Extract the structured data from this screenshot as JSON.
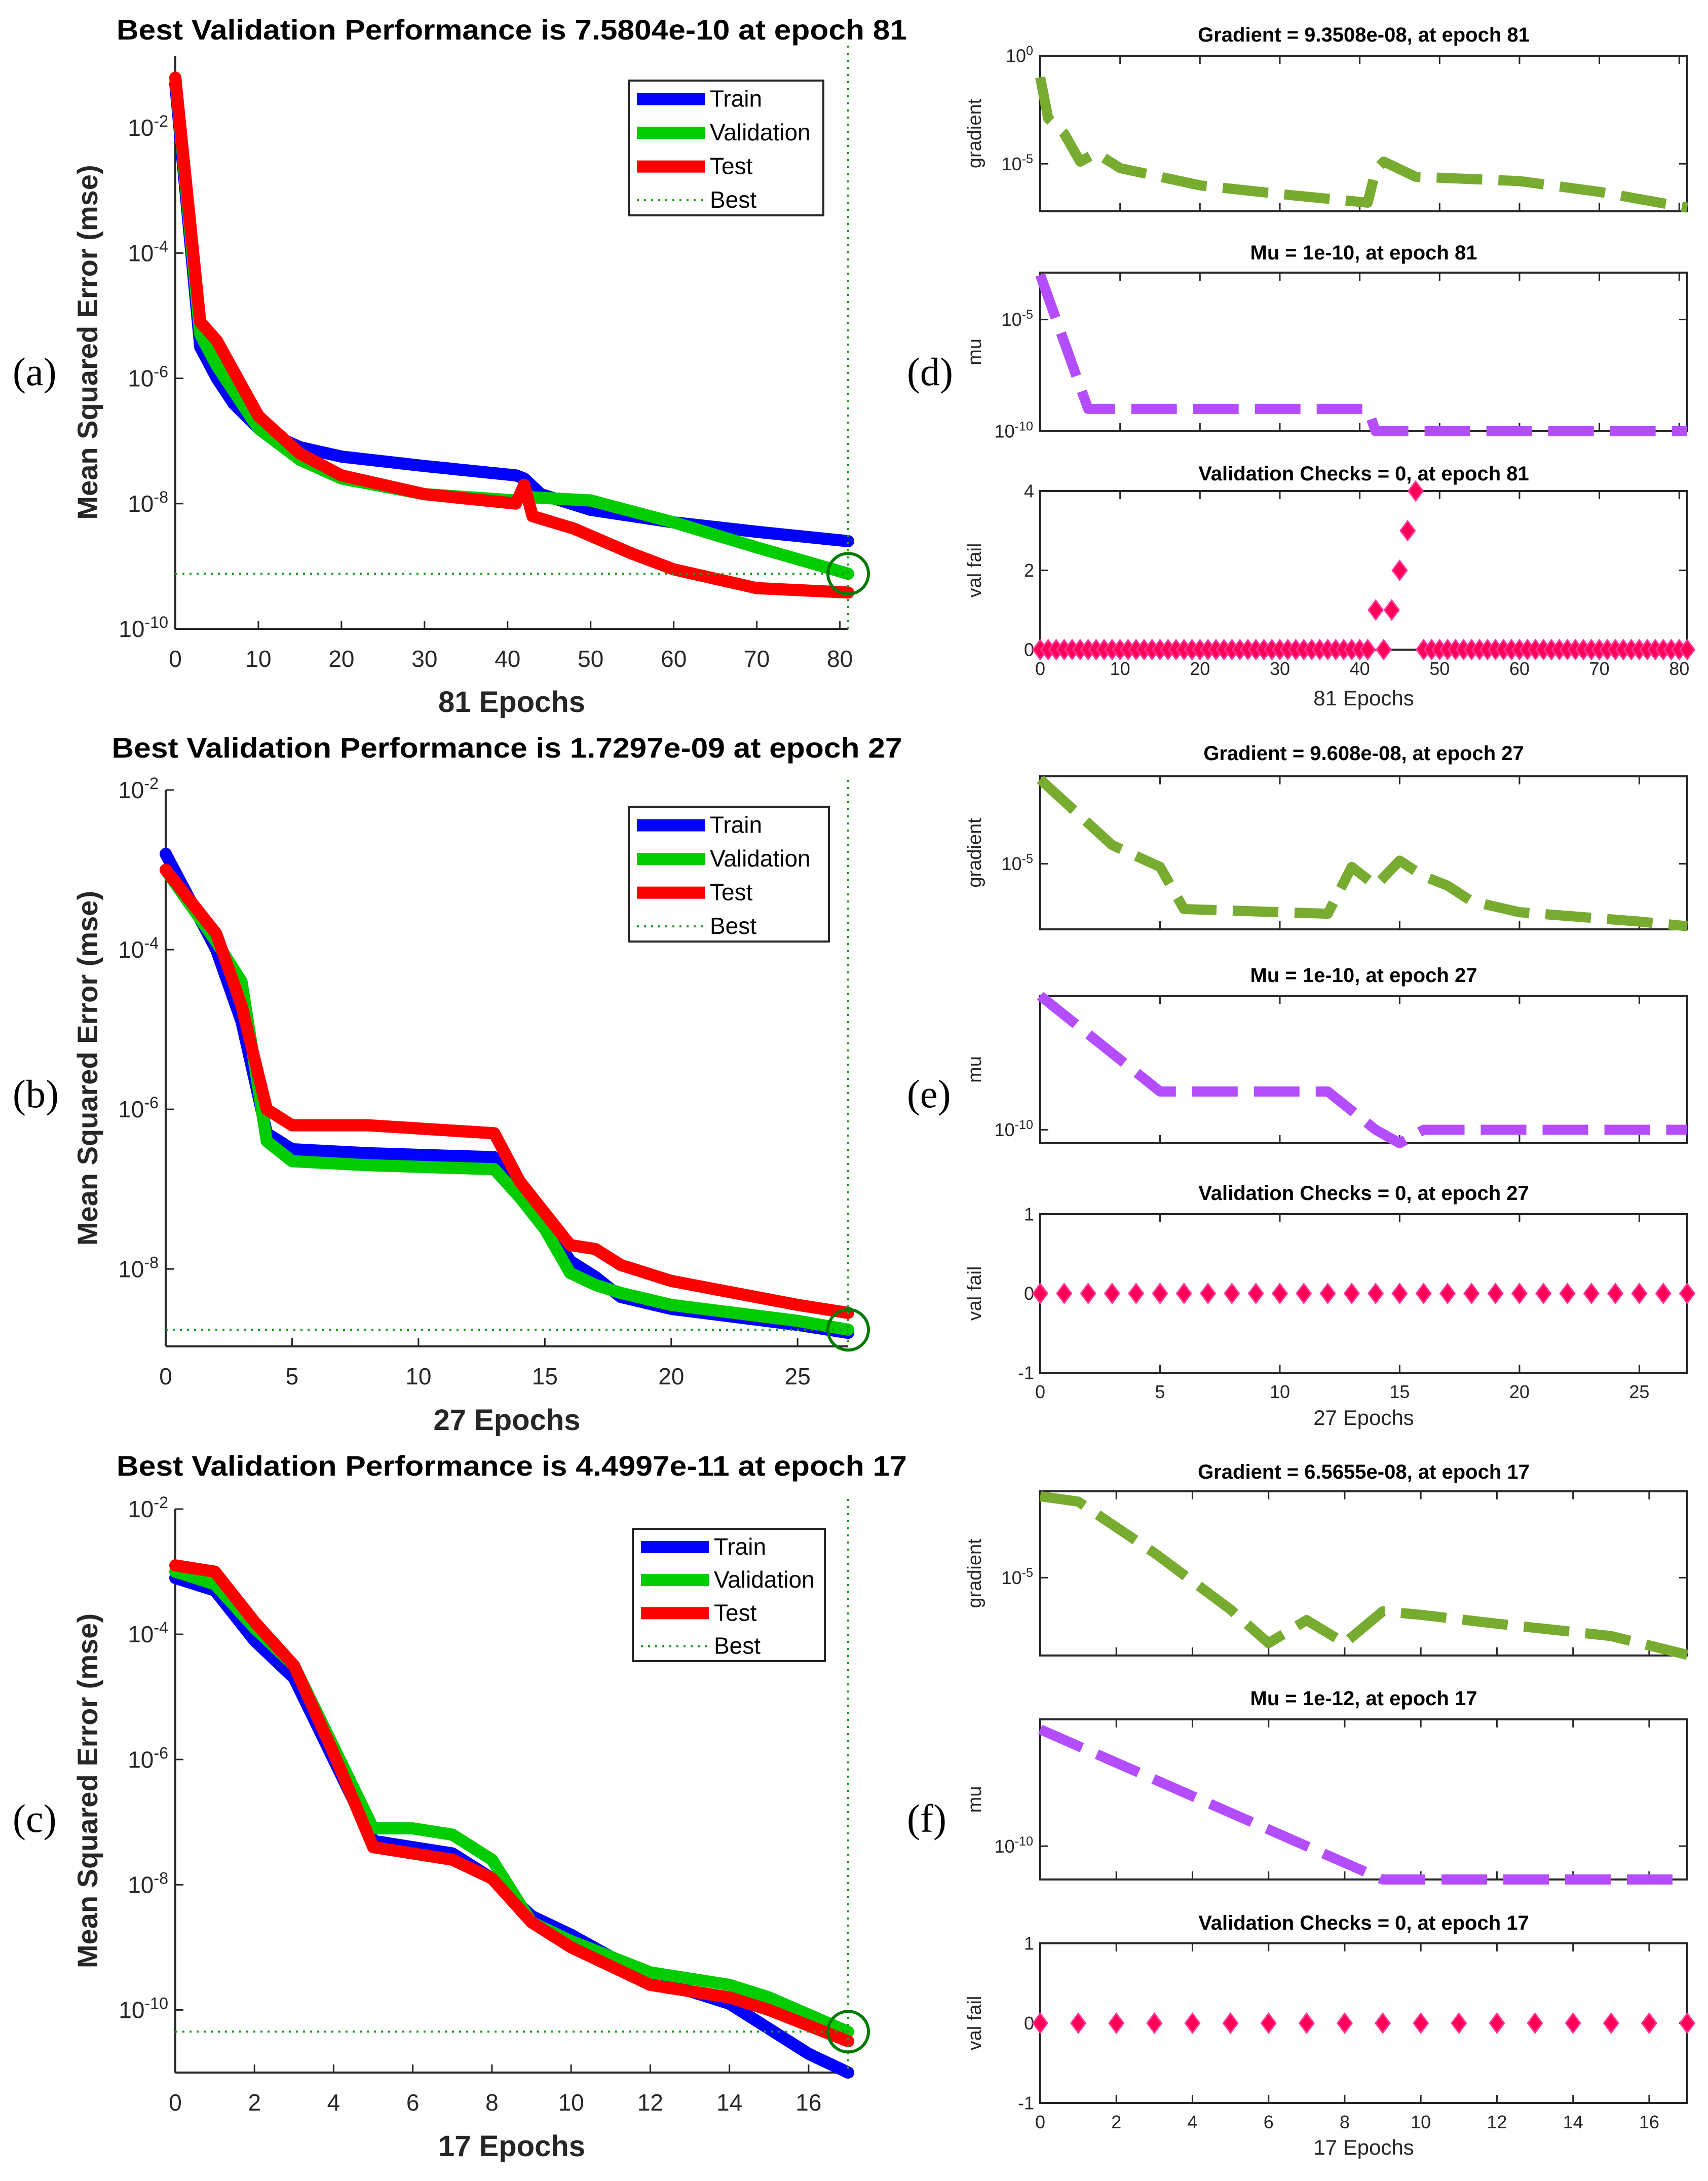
{
  "figure_labels": [
    "(a)",
    "(b)",
    "(c)",
    "(d)",
    "(e)",
    "(f)"
  ],
  "colors": {
    "train": "#0000ff",
    "validation": "#00cc00",
    "test": "#ff0000",
    "best": "#1a9a1a",
    "gradient": "#77ac30",
    "mu": "#b44dff",
    "valfail": "#ff0055",
    "axis": "#262626"
  },
  "legend": [
    "Train",
    "Validation",
    "Test",
    "Best"
  ],
  "chart_data": [
    {
      "id": "a",
      "type": "line",
      "yscale": "log",
      "title": "Best Validation Performance is 7.5804e-10 at epoch 81",
      "xlabel": "81 Epochs",
      "ylabel": "Mean Squared Error  (mse)",
      "xlim": [
        0,
        81
      ],
      "ylim_log10": [
        -10,
        -0.85
      ],
      "xticks": [
        "0",
        "10",
        "20",
        "30",
        "40",
        "50",
        "60",
        "70",
        "80"
      ],
      "yticks": [
        {
          "base": "10",
          "exp": "-10"
        },
        {
          "base": "10",
          "exp": "-8"
        },
        {
          "base": "10",
          "exp": "-6"
        },
        {
          "base": "10",
          "exp": "-4"
        },
        {
          "base": "10",
          "exp": "-2"
        }
      ],
      "best": {
        "epoch": 81,
        "value": 7.5804e-10
      },
      "series": [
        {
          "name": "Train",
          "x": [
            0,
            3,
            5,
            7,
            10,
            15,
            20,
            30,
            41,
            42,
            44,
            50,
            60,
            70,
            81
          ],
          "y_log10": [
            -1.3,
            -5.5,
            -6,
            -6.4,
            -6.8,
            -7.1,
            -7.25,
            -7.4,
            -7.55,
            -7.6,
            -7.85,
            -8.1,
            -8.3,
            -8.45,
            -8.6
          ]
        },
        {
          "name": "Validation",
          "x": [
            0,
            3,
            5,
            10,
            15,
            20,
            30,
            41,
            42,
            43,
            50,
            60,
            70,
            81
          ],
          "y_log10": [
            -1.2,
            -5.3,
            -5.8,
            -6.8,
            -7.3,
            -7.6,
            -7.85,
            -7.95,
            -7.85,
            -7.9,
            -7.95,
            -8.3,
            -8.7,
            -9.12
          ]
        },
        {
          "name": "Test",
          "x": [
            0,
            3,
            5,
            10,
            15,
            20,
            30,
            41,
            42,
            43,
            48,
            55,
            60,
            70,
            81
          ],
          "y_log10": [
            -1.2,
            -5.1,
            -5.4,
            -6.6,
            -7.2,
            -7.55,
            -7.85,
            -8.0,
            -7.7,
            -8.2,
            -8.4,
            -8.8,
            -9.05,
            -9.35,
            -9.42
          ]
        }
      ]
    },
    {
      "id": "b",
      "type": "line",
      "yscale": "log",
      "title": "Best Validation Performance is 1.7297e-09 at epoch 27",
      "xlabel": "27 Epochs",
      "ylabel": "Mean Squared Error  (mse)",
      "xlim": [
        0,
        27
      ],
      "ylim_log10": [
        -8.97,
        -2
      ],
      "xticks": [
        "0",
        "5",
        "10",
        "15",
        "20",
        "25"
      ],
      "yticks": [
        {
          "base": "10",
          "exp": "-8"
        },
        {
          "base": "10",
          "exp": "-6"
        },
        {
          "base": "10",
          "exp": "-4"
        },
        {
          "base": "10",
          "exp": "-2"
        }
      ],
      "best": {
        "epoch": 27,
        "value": 1.7297e-09
      },
      "series": [
        {
          "name": "Train",
          "x": [
            0,
            2,
            3,
            4,
            5,
            8,
            13,
            14,
            15,
            16,
            17,
            18,
            20,
            25,
            27
          ],
          "y_log10": [
            -2.8,
            -4.0,
            -4.9,
            -6.3,
            -6.5,
            -6.55,
            -6.6,
            -7.0,
            -7.4,
            -7.9,
            -8.1,
            -8.35,
            -8.5,
            -8.7,
            -8.8
          ]
        },
        {
          "name": "Validation",
          "x": [
            0,
            2,
            3,
            4,
            5,
            8,
            13,
            14,
            15,
            16,
            17,
            18,
            20,
            25,
            27
          ],
          "y_log10": [
            -3.0,
            -3.9,
            -4.4,
            -6.4,
            -6.65,
            -6.7,
            -6.75,
            -7.1,
            -7.5,
            -8.05,
            -8.2,
            -8.3,
            -8.45,
            -8.65,
            -8.76
          ]
        },
        {
          "name": "Test",
          "x": [
            0,
            2,
            3,
            4,
            5,
            8,
            13,
            14,
            15,
            16,
            17,
            18,
            20,
            25,
            27
          ],
          "y_log10": [
            -3.0,
            -3.8,
            -4.7,
            -6.0,
            -6.2,
            -6.2,
            -6.3,
            -6.9,
            -7.3,
            -7.7,
            -7.75,
            -7.95,
            -8.15,
            -8.45,
            -8.55
          ]
        }
      ]
    },
    {
      "id": "c",
      "type": "line",
      "yscale": "log",
      "title": "Best Validation Performance is 4.4997e-11 at epoch 17",
      "xlabel": "17 Epochs",
      "ylabel": "Mean Squared Error  (mse)",
      "xlim": [
        0,
        17
      ],
      "ylim_log10": [
        -11,
        -2
      ],
      "xticks": [
        "0",
        "2",
        "4",
        "6",
        "8",
        "10",
        "12",
        "14",
        "16"
      ],
      "yticks": [
        {
          "base": "10",
          "exp": "-10"
        },
        {
          "base": "10",
          "exp": "-8"
        },
        {
          "base": "10",
          "exp": "-6"
        },
        {
          "base": "10",
          "exp": "-4"
        },
        {
          "base": "10",
          "exp": "-2"
        }
      ],
      "best": {
        "epoch": 17,
        "value": 4.4997e-11
      },
      "series": [
        {
          "name": "Train",
          "x": [
            0,
            1,
            2,
            3,
            4,
            5,
            6,
            7,
            8,
            9,
            10,
            12,
            14,
            15,
            16,
            17
          ],
          "y_log10": [
            -3.1,
            -3.3,
            -4.1,
            -4.7,
            -6.0,
            -7.3,
            -7.4,
            -7.5,
            -7.9,
            -8.5,
            -8.8,
            -9.5,
            -9.9,
            -10.3,
            -10.7,
            -11.0
          ]
        },
        {
          "name": "Validation",
          "x": [
            0,
            1,
            2,
            3,
            4,
            5,
            6,
            7,
            8,
            9,
            10,
            12,
            14,
            15,
            17
          ],
          "y_log10": [
            -3.0,
            -3.2,
            -3.9,
            -4.5,
            -5.8,
            -7.1,
            -7.1,
            -7.2,
            -7.6,
            -8.6,
            -8.9,
            -9.4,
            -9.6,
            -9.8,
            -10.35
          ]
        },
        {
          "name": "Test",
          "x": [
            0,
            1,
            2,
            3,
            4,
            5,
            6,
            7,
            8,
            9,
            10,
            12,
            14,
            15,
            17
          ],
          "y_log10": [
            -2.9,
            -3.0,
            -3.8,
            -4.5,
            -5.9,
            -7.4,
            -7.5,
            -7.6,
            -7.9,
            -8.6,
            -9.0,
            -9.6,
            -9.8,
            -10.0,
            -10.5
          ]
        }
      ]
    },
    {
      "id": "d_grad",
      "type": "line",
      "yscale": "log",
      "title": "Gradient = 9.3508e-08, at epoch 81",
      "ylabel": "gradient",
      "xlim": [
        0,
        81
      ],
      "ylim_log10": [
        -7.2,
        0
      ],
      "yticks": [
        {
          "base": "10",
          "exp": "-5"
        },
        {
          "base": "10",
          "exp": "0"
        }
      ],
      "x": [
        0,
        1,
        3,
        5,
        7,
        10,
        20,
        30,
        41,
        42,
        43,
        47,
        60,
        70,
        81
      ],
      "y_log10": [
        -1.0,
        -2.9,
        -3.6,
        -4.9,
        -4.5,
        -5.2,
        -6.0,
        -6.4,
        -6.8,
        -5.3,
        -4.9,
        -5.6,
        -5.8,
        -6.3,
        -7.03
      ]
    },
    {
      "id": "d_mu",
      "type": "line",
      "yscale": "log",
      "title": "Mu = 1e-10, at epoch 81",
      "ylabel": "mu",
      "xlim": [
        0,
        81
      ],
      "ylim_log10": [
        -10,
        -2.9
      ],
      "yticks": [
        {
          "base": "10",
          "exp": "-10"
        },
        {
          "base": "10",
          "exp": "-5"
        }
      ],
      "x": [
        0,
        6,
        41,
        42,
        81
      ],
      "y_log10": [
        -3,
        -9,
        -9,
        -10,
        -10
      ]
    },
    {
      "id": "d_val",
      "type": "scatter",
      "title": "Validation Checks = 0, at epoch 81",
      "ylabel": "val fail",
      "xlabel": "81 Epochs",
      "xlim": [
        0,
        81
      ],
      "ylim": [
        0,
        4
      ],
      "xticks": [
        "0",
        "10",
        "20",
        "30",
        "40",
        "50",
        "60",
        "70",
        "80"
      ],
      "yticks": [
        "0",
        "2",
        "4"
      ],
      "x": [
        0,
        1,
        2,
        3,
        4,
        5,
        6,
        7,
        8,
        9,
        10,
        11,
        12,
        13,
        14,
        15,
        16,
        17,
        18,
        19,
        20,
        21,
        22,
        23,
        24,
        25,
        26,
        27,
        28,
        29,
        30,
        31,
        32,
        33,
        34,
        35,
        36,
        37,
        38,
        39,
        40,
        41,
        42,
        43,
        44,
        45,
        46,
        47,
        48,
        49,
        50,
        51,
        52,
        53,
        54,
        55,
        56,
        57,
        58,
        59,
        60,
        61,
        62,
        63,
        64,
        65,
        66,
        67,
        68,
        69,
        70,
        71,
        72,
        73,
        74,
        75,
        76,
        77,
        78,
        79,
        80,
        81
      ],
      "y": [
        0,
        0,
        0,
        0,
        0,
        0,
        0,
        0,
        0,
        0,
        0,
        0,
        0,
        0,
        0,
        0,
        0,
        0,
        0,
        0,
        0,
        0,
        0,
        0,
        0,
        0,
        0,
        0,
        0,
        0,
        0,
        0,
        0,
        0,
        0,
        0,
        0,
        0,
        0,
        0,
        0,
        0,
        1,
        0,
        1,
        2,
        3,
        4,
        0,
        0,
        0,
        0,
        0,
        0,
        0,
        0,
        0,
        0,
        0,
        0,
        0,
        0,
        0,
        0,
        0,
        0,
        0,
        0,
        0,
        0,
        0,
        0,
        0,
        0,
        0,
        0,
        0,
        0,
        0,
        0,
        0,
        0
      ]
    },
    {
      "id": "e_grad",
      "type": "line",
      "yscale": "log",
      "title": "Gradient = 9.608e-08, at epoch 27",
      "ylabel": "gradient",
      "xlim": [
        0,
        27
      ],
      "ylim_log10": [
        -7.1,
        -2.2
      ],
      "yticks": [
        {
          "base": "10",
          "exp": "-5"
        }
      ],
      "x": [
        0,
        3,
        5,
        6,
        12,
        13,
        14,
        15,
        16,
        17,
        18,
        20,
        25,
        27
      ],
      "y_log10": [
        -2.3,
        -4.4,
        -5.1,
        -6.45,
        -6.6,
        -5.1,
        -5.7,
        -4.9,
        -5.4,
        -5.7,
        -6.2,
        -6.55,
        -6.85,
        -7.0
      ]
    },
    {
      "id": "e_mu",
      "type": "line",
      "yscale": "log",
      "title": "Mu = 1e-10, at epoch 27",
      "ylabel": "mu",
      "xlim": [
        0,
        27
      ],
      "ylim_log10": [
        -10.7,
        -3
      ],
      "yticks": [
        {
          "base": "10",
          "exp": "-10"
        }
      ],
      "x": [
        0,
        5,
        12,
        13,
        14,
        15,
        16,
        27
      ],
      "y_log10": [
        -3,
        -8,
        -8,
        -9,
        -10,
        -11,
        -10,
        -10
      ]
    },
    {
      "id": "e_val",
      "type": "scatter",
      "title": "Validation Checks = 0, at epoch 27",
      "ylabel": "val fail",
      "xlabel": "27 Epochs",
      "xlim": [
        0,
        27
      ],
      "ylim": [
        -1,
        1
      ],
      "xticks": [
        "0",
        "5",
        "10",
        "15",
        "20",
        "25"
      ],
      "yticks": [
        "-1",
        "0",
        "1"
      ],
      "x": [
        0,
        1,
        2,
        3,
        4,
        5,
        6,
        7,
        8,
        9,
        10,
        11,
        12,
        13,
        14,
        15,
        16,
        17,
        18,
        19,
        20,
        21,
        22,
        23,
        24,
        25,
        26,
        27
      ],
      "y": [
        0,
        0,
        0,
        0,
        0,
        0,
        0,
        0,
        0,
        0,
        0,
        0,
        0,
        0,
        0,
        0,
        0,
        0,
        0,
        0,
        0,
        0,
        0,
        0,
        0,
        0,
        0,
        0
      ]
    },
    {
      "id": "f_grad",
      "type": "line",
      "yscale": "log",
      "title": "Gradient = 6.5655e-08, at epoch 17",
      "ylabel": "gradient",
      "xlim": [
        0,
        17
      ],
      "ylim_log10": [
        -7.2,
        -2.56
      ],
      "yticks": [
        {
          "base": "10",
          "exp": "-5"
        }
      ],
      "x": [
        0,
        1,
        3,
        5,
        6,
        7,
        8,
        9,
        10,
        12,
        15,
        17
      ],
      "y_log10": [
        -2.7,
        -2.85,
        -4.3,
        -5.9,
        -6.85,
        -6.2,
        -6.85,
        -5.95,
        -6.05,
        -6.3,
        -6.65,
        -7.18
      ]
    },
    {
      "id": "f_mu",
      "type": "line",
      "yscale": "log",
      "title": "Mu = 1e-12, at epoch 17",
      "ylabel": "mu",
      "xlim": [
        0,
        17
      ],
      "ylim_log10": [
        -12,
        -2.4
      ],
      "yticks": [
        {
          "base": "10",
          "exp": "-10"
        }
      ],
      "x": [
        0,
        9,
        17
      ],
      "y_log10": [
        -3,
        -12,
        -12
      ]
    },
    {
      "id": "f_val",
      "type": "scatter",
      "title": "Validation Checks = 0, at epoch 17",
      "ylabel": "val fail",
      "xlabel": "17 Epochs",
      "xlim": [
        0,
        17
      ],
      "ylim": [
        -1,
        1
      ],
      "xticks": [
        "0",
        "2",
        "4",
        "6",
        "8",
        "10",
        "12",
        "14",
        "16"
      ],
      "yticks": [
        "-1",
        "0",
        "1"
      ],
      "x": [
        0,
        1,
        2,
        3,
        4,
        5,
        6,
        7,
        8,
        9,
        10,
        11,
        12,
        13,
        14,
        15,
        16,
        17
      ],
      "y": [
        0,
        0,
        0,
        0,
        0,
        0,
        0,
        0,
        0,
        0,
        0,
        0,
        0,
        0,
        0,
        0,
        0,
        0
      ]
    }
  ]
}
